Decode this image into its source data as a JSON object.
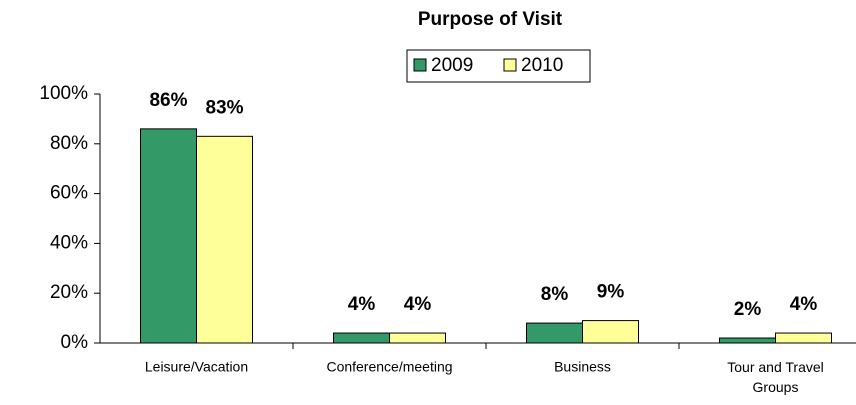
{
  "chart_data": {
    "type": "bar",
    "title": "Purpose of Visit",
    "categories": [
      "Leisure/Vacation",
      "Conference/meeting",
      "Business",
      "Tour and Travel Groups"
    ],
    "series": [
      {
        "name": "2009",
        "color": "#339966",
        "values": [
          86,
          4,
          8,
          2
        ],
        "value_labels": [
          "86%",
          "4%",
          "8%",
          "2%"
        ]
      },
      {
        "name": "2010",
        "color": "#ffff99",
        "values": [
          83,
          4,
          9,
          4
        ],
        "value_labels": [
          "83%",
          "4%",
          "9%",
          "4%"
        ]
      }
    ],
    "ylim": [
      0,
      100
    ],
    "yticks": [
      {
        "value": 0,
        "label": "0%"
      },
      {
        "value": 20,
        "label": "20%"
      },
      {
        "value": 40,
        "label": "40%"
      },
      {
        "value": 60,
        "label": "60%"
      },
      {
        "value": 80,
        "label": "80%"
      },
      {
        "value": 100,
        "label": "100%"
      }
    ],
    "legend": "top"
  }
}
